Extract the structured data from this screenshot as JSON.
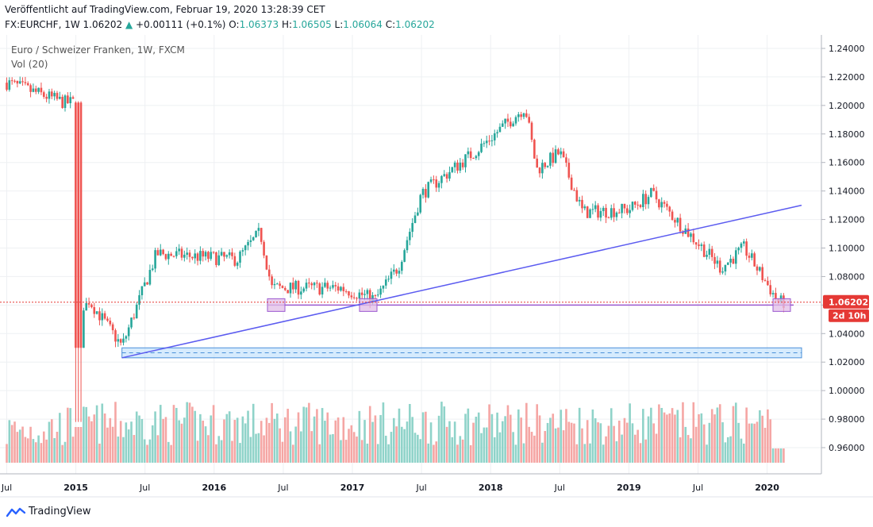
{
  "header": {
    "published": "Veröffentlicht auf TradingView.com, Februar 19, 2020 13:28:39 CET",
    "symbol_line_prefix": "FX:EURCHF, 1W 1.06202",
    "change_arrow": "▲",
    "change": "+0.00111 (+0.1%)",
    "open_label": "O:",
    "open": "1.06373",
    "high_label": "H:",
    "high": "1.06505",
    "low_label": "L:",
    "low": "1.06064",
    "close_label": "C:",
    "close": "1.06202"
  },
  "legend": {
    "title": "Euro / Schweizer Franken, 1W, FXCM",
    "indicator": "Vol (20)"
  },
  "price_badge": {
    "price": "1.06202",
    "countdown": "2d 10h"
  },
  "footer": {
    "brand": "TradingView"
  },
  "colors": {
    "up": "#26a69a",
    "down": "#ef5350",
    "vol_up": "#8fd3c9",
    "vol_down": "#f5a6a4",
    "trendline": "#5b5bf0",
    "support": "#9b59d0",
    "zone_fill": "#bbdefb",
    "zone_border": "#4a90d9",
    "badge": "#e53935",
    "box_fill": "#e1bee7"
  },
  "chart_data": {
    "type": "candlestick",
    "title": "Euro / Schweizer Franken, 1W, FXCM",
    "timeframe": "1W",
    "y_ticks": [
      "1.24000",
      "1.22000",
      "1.20000",
      "1.18000",
      "1.16000",
      "1.14000",
      "1.12000",
      "1.10000",
      "1.08000",
      "1.06000",
      "1.04000",
      "1.02000",
      "1.00000",
      "0.98000",
      "0.96000"
    ],
    "x_ticks": [
      "Jul",
      "2015",
      "Jul",
      "2016",
      "Jul",
      "2017",
      "Jul",
      "2018",
      "Jul",
      "2019",
      "Jul",
      "2020"
    ],
    "ylim": [
      0.945,
      1.248
    ],
    "x_range": [
      "2014-07",
      "2020-04"
    ],
    "last_price": 1.06202,
    "key_points": [
      {
        "date": "2014-07",
        "close": 1.216
      },
      {
        "date": "2014-12",
        "close": 1.202
      },
      {
        "date": "2015-01",
        "low": 0.978
      },
      {
        "date": "2015-02",
        "close": 1.065
      },
      {
        "date": "2015-05",
        "close": 1.031
      },
      {
        "date": "2015-08",
        "close": 1.096
      },
      {
        "date": "2016-03",
        "close": 1.092
      },
      {
        "date": "2016-05",
        "close": 1.111
      },
      {
        "date": "2016-06",
        "close": 1.072
      },
      {
        "date": "2016-12",
        "close": 1.072
      },
      {
        "date": "2017-03",
        "close": 1.064
      },
      {
        "date": "2017-05",
        "close": 1.087
      },
      {
        "date": "2017-07",
        "close": 1.138
      },
      {
        "date": "2017-12",
        "close": 1.17
      },
      {
        "date": "2018-04",
        "close": 1.199
      },
      {
        "date": "2018-05",
        "close": 1.155
      },
      {
        "date": "2018-07",
        "close": 1.167
      },
      {
        "date": "2018-09",
        "close": 1.125
      },
      {
        "date": "2019-01",
        "close": 1.127
      },
      {
        "date": "2019-03",
        "close": 1.138
      },
      {
        "date": "2019-06",
        "close": 1.112
      },
      {
        "date": "2019-09",
        "close": 1.086
      },
      {
        "date": "2019-11",
        "close": 1.1
      },
      {
        "date": "2020-02",
        "close": 1.062
      }
    ],
    "drawings": {
      "support_line": 1.06,
      "trendline": [
        {
          "date": "2015-05",
          "price": 1.023
        },
        {
          "date": "2020-03",
          "price": 1.13
        }
      ],
      "support_zone": [
        1.023,
        1.03
      ],
      "zone_dashed": 1.0265
    },
    "volume_indicator": "Vol (20)"
  }
}
